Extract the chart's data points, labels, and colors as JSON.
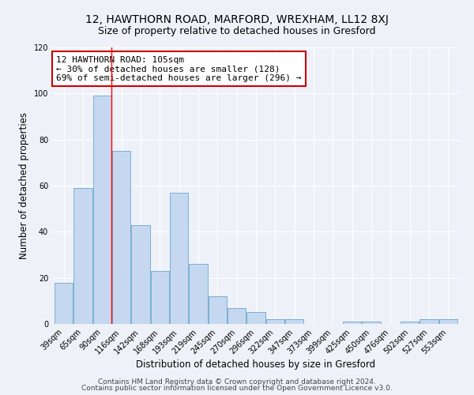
{
  "title1": "12, HAWTHORN ROAD, MARFORD, WREXHAM, LL12 8XJ",
  "title2": "Size of property relative to detached houses in Gresford",
  "xlabel": "Distribution of detached houses by size in Gresford",
  "ylabel": "Number of detached properties",
  "categories": [
    "39sqm",
    "65sqm",
    "90sqm",
    "116sqm",
    "142sqm",
    "168sqm",
    "193sqm",
    "219sqm",
    "245sqm",
    "270sqm",
    "296sqm",
    "322sqm",
    "347sqm",
    "373sqm",
    "399sqm",
    "425sqm",
    "450sqm",
    "476sqm",
    "502sqm",
    "527sqm",
    "553sqm"
  ],
  "values": [
    18,
    59,
    99,
    75,
    43,
    23,
    57,
    26,
    12,
    7,
    5,
    2,
    2,
    0,
    0,
    1,
    1,
    0,
    1,
    2,
    2
  ],
  "bar_color": "#c5d8f0",
  "bar_edge_color": "#7aafd4",
  "red_line_x": 2.5,
  "annotation_title": "12 HAWTHORN ROAD: 105sqm",
  "annotation_line1": "← 30% of detached houses are smaller (128)",
  "annotation_line2": "69% of semi-detached houses are larger (296) →",
  "annotation_box_edge_color": "#cc0000",
  "ylim": [
    0,
    120
  ],
  "yticks": [
    0,
    20,
    40,
    60,
    80,
    100,
    120
  ],
  "footer1": "Contains HM Land Registry data © Crown copyright and database right 2024.",
  "footer2": "Contains public sector information licensed under the Open Government Licence v3.0.",
  "background_color": "#eef2f8",
  "grid_color": "#ffffff",
  "title1_fontsize": 10,
  "title2_fontsize": 9,
  "tick_fontsize": 7,
  "label_fontsize": 8.5,
  "footer_fontsize": 6.5,
  "annotation_fontsize": 8
}
